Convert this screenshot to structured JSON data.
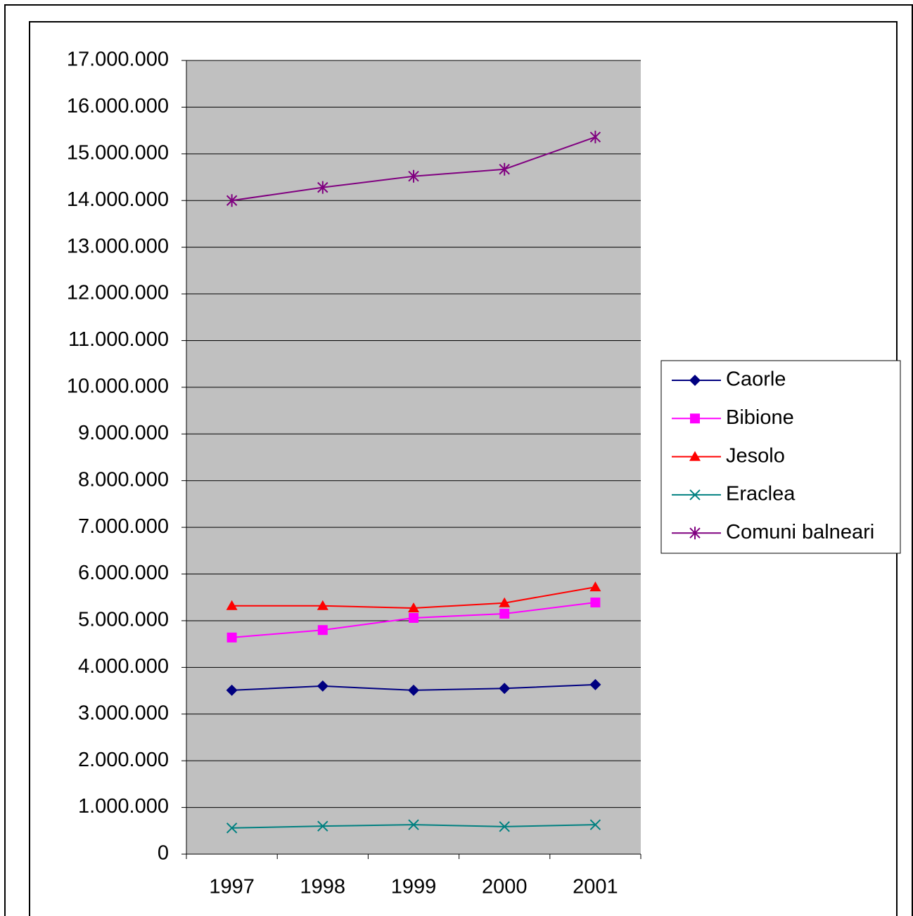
{
  "chart_data": {
    "type": "line",
    "categories": [
      "1997",
      "1998",
      "1999",
      "2000",
      "2001"
    ],
    "series": [
      {
        "name": "Caorle",
        "color": "#000080",
        "marker": "diamond",
        "values": [
          3510000,
          3600000,
          3510000,
          3550000,
          3630000
        ]
      },
      {
        "name": "Bibione",
        "color": "#ff00ff",
        "marker": "square",
        "values": [
          4640000,
          4800000,
          5060000,
          5150000,
          5390000
        ]
      },
      {
        "name": "Jesolo",
        "color": "#ff0000",
        "marker": "triangle",
        "values": [
          5320000,
          5320000,
          5270000,
          5380000,
          5720000
        ]
      },
      {
        "name": "Eraclea",
        "color": "#008080",
        "marker": "x",
        "values": [
          560000,
          600000,
          630000,
          590000,
          630000
        ]
      },
      {
        "name": "Comuni balneari",
        "color": "#800080",
        "marker": "star",
        "values": [
          14000000,
          14280000,
          14520000,
          14670000,
          15360000
        ]
      }
    ],
    "ylim": [
      0,
      17000000
    ],
    "yticks": [
      0,
      {
        "value": 1000000,
        "label": "1.000.000"
      },
      {
        "value": 2000000,
        "label": "2.000.000"
      },
      {
        "value": 3000000,
        "label": "3.000.000"
      },
      {
        "value": 4000000,
        "label": "4.000.000"
      },
      {
        "value": 5000000,
        "label": "5.000.000"
      },
      {
        "value": 6000000,
        "label": "6.000.000"
      },
      {
        "value": 7000000,
        "label": "7.000.000"
      },
      {
        "value": 8000000,
        "label": "8.000.000"
      },
      {
        "value": 9000000,
        "label": "9.000.000"
      },
      {
        "value": 10000000,
        "label": "10.000.000"
      },
      {
        "value": 11000000,
        "label": "11.000.000"
      },
      {
        "value": 12000000,
        "label": "12.000.000"
      },
      {
        "value": 13000000,
        "label": "13.000.000"
      },
      {
        "value": 14000000,
        "label": "14.000.000"
      },
      {
        "value": 15000000,
        "label": "15.000.000"
      },
      {
        "value": 16000000,
        "label": "16.000.000"
      },
      {
        "value": 17000000,
        "label": "17.000.000"
      }
    ],
    "grid": true,
    "plot_background": "#c0c0c0",
    "legend": "right"
  }
}
